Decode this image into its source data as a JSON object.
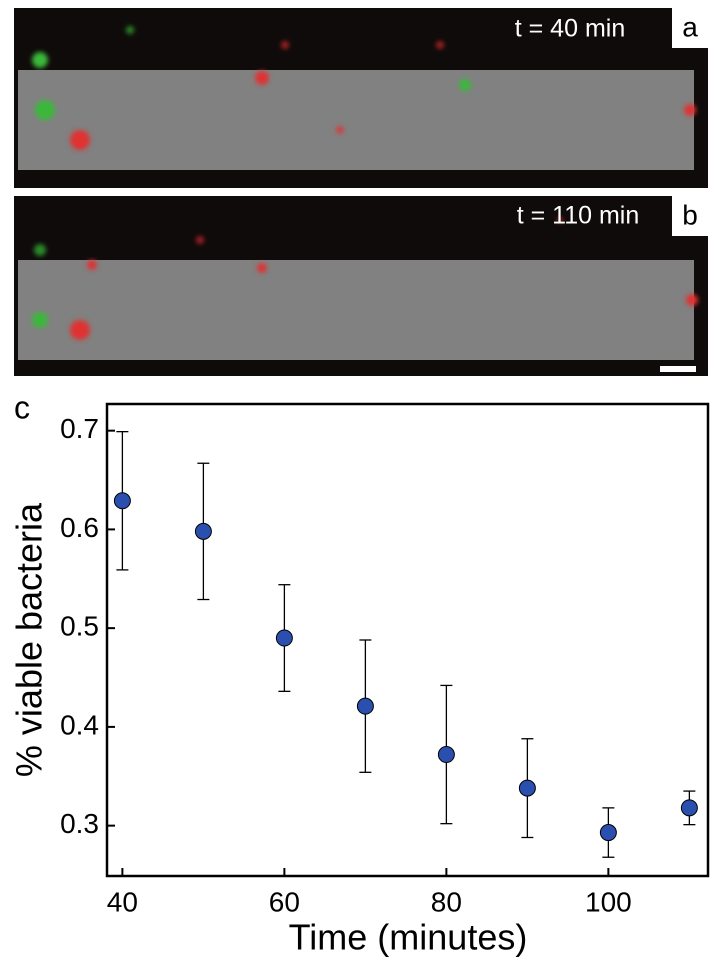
{
  "panels": [
    {
      "caption": "t = 40 min",
      "label": "a"
    },
    {
      "caption": "t = 110 min",
      "label": "b"
    }
  ],
  "chart_data": {
    "type": "scatter",
    "panel_label": "c",
    "x_label": "Time (minutes)",
    "y_label": "% viable bacteria",
    "x": [
      40,
      50,
      60,
      70,
      80,
      90,
      100,
      110
    ],
    "series": [
      {
        "color": "#2b4fae",
        "values": [
          0.629,
          0.598,
          0.49,
          0.421,
          0.372,
          0.338,
          0.293,
          0.318
        ],
        "errors": [
          0.07,
          0.069,
          0.054,
          0.067,
          0.07,
          0.05,
          0.025,
          0.017
        ]
      }
    ],
    "xlim": [
      38.1,
      112.3
    ],
    "ylim": [
      0.249,
      0.727
    ],
    "xticks": [
      40,
      60,
      80,
      100
    ],
    "yticks": [
      0.3,
      0.4,
      0.5,
      0.6,
      0.7
    ]
  }
}
